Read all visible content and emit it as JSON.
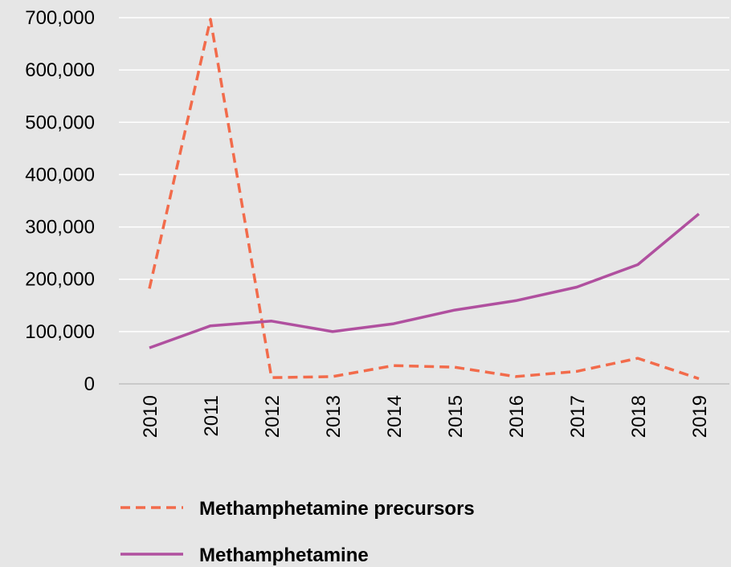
{
  "chart_data": {
    "type": "line",
    "categories": [
      "2010",
      "2011",
      "2012",
      "2013",
      "2014",
      "2015",
      "2016",
      "2017",
      "2018",
      "2019"
    ],
    "series": [
      {
        "name": "Methamphetamine precursors",
        "values": [
          182000,
          697000,
          12000,
          14000,
          35000,
          32000,
          14000,
          24000,
          49000,
          10000
        ],
        "color": "#f26b4b",
        "dashed": true
      },
      {
        "name": "Methamphetamine",
        "values": [
          69000,
          111000,
          120000,
          100000,
          115000,
          141000,
          159000,
          185000,
          228000,
          325000
        ],
        "color": "#b0509f",
        "dashed": false
      }
    ],
    "yticks": [
      "0",
      "100,000",
      "200,000",
      "300,000",
      "400,000",
      "500,000",
      "600,000",
      "700,000"
    ],
    "ytick_values": [
      0,
      100000,
      200000,
      300000,
      400000,
      500000,
      600000,
      700000
    ],
    "ylim": [
      0,
      700000
    ],
    "grid": true,
    "legend_position": "bottom",
    "gridline_color": "#ffffff",
    "axis_color": "#bfbfbf",
    "background": "#e6e6e6"
  }
}
